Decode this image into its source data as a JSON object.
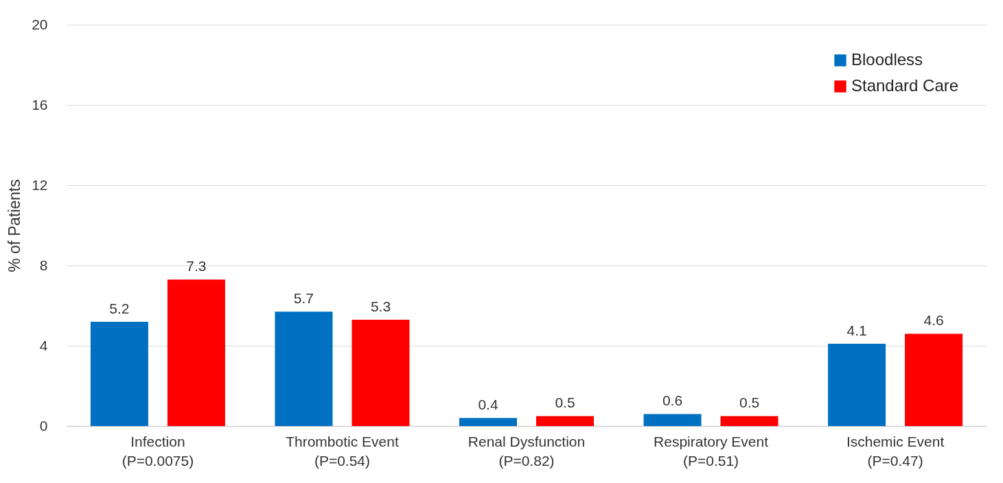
{
  "chart_data": {
    "type": "bar",
    "ylabel": "% of Patients",
    "categories": [
      "Infection\n(P=0.0075)",
      "Thrombotic Event\n(P=0.54)",
      "Renal Dysfunction\n(P=0.82)",
      "Respiratory Event\n(P=0.51)",
      "Ischemic Event\n(P=0.47)"
    ],
    "series": [
      {
        "name": "Bloodless",
        "color": "#0070c0",
        "values": [
          5.2,
          5.7,
          0.4,
          0.6,
          4.1
        ]
      },
      {
        "name": "Standard Care",
        "color": "#ff0000",
        "values": [
          7.3,
          5.3,
          0.5,
          0.5,
          4.6
        ]
      }
    ],
    "ylim": [
      0,
      20
    ],
    "yticks": [
      0,
      4,
      8,
      12,
      16,
      20
    ],
    "grid": "y",
    "legend": "top right",
    "data_labels": true
  }
}
